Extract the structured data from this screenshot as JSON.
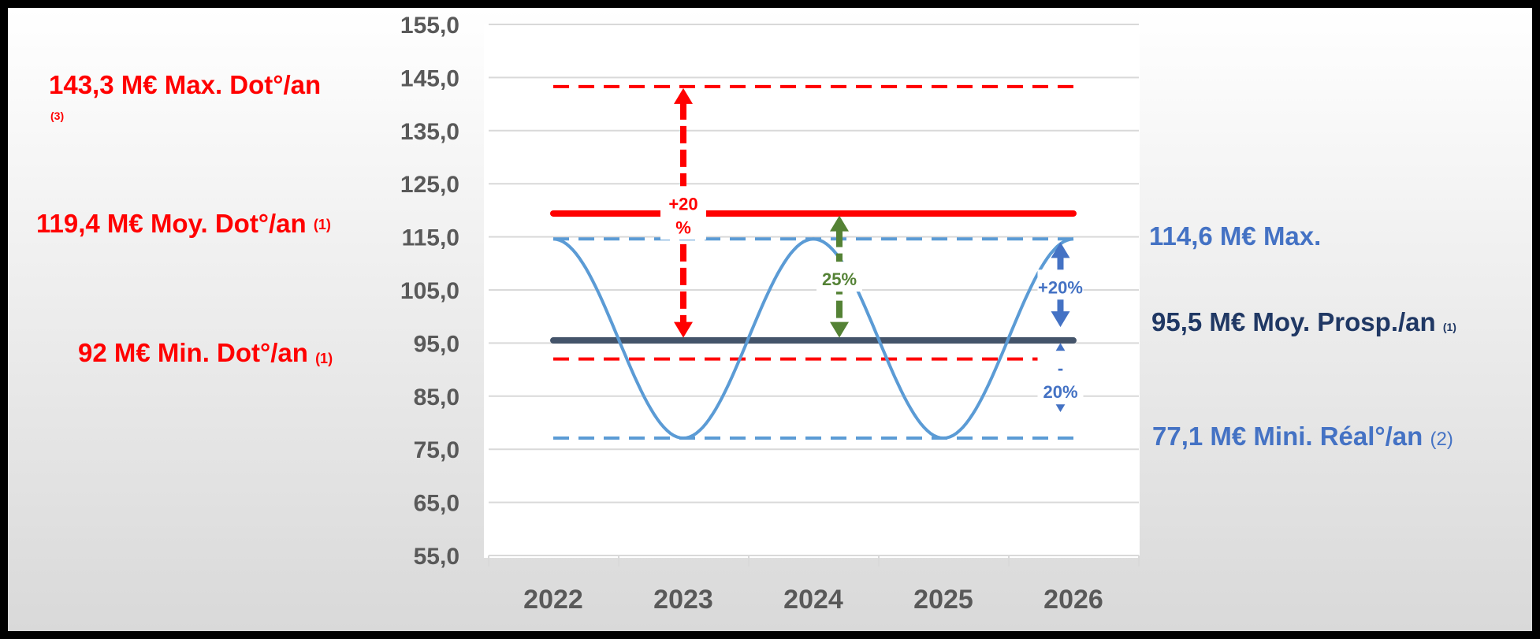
{
  "chart_data": {
    "type": "line",
    "categories": [
      "2022",
      "2023",
      "2024",
      "2025",
      "2026"
    ],
    "y_ticks": [
      "55,0",
      "65,0",
      "75,0",
      "85,0",
      "95,0",
      "105,0",
      "115,0",
      "125,0",
      "135,0",
      "145,0",
      "155,0"
    ],
    "ylim": [
      55,
      155
    ],
    "grid": true,
    "series": [
      {
        "color": "#5b9bd5",
        "style": "smooth",
        "x": [
          2022.0,
          2023.0,
          2024.0,
          2025.0,
          2026.0
        ],
        "values": [
          114.6,
          77.1,
          114.6,
          77.1,
          114.6
        ]
      }
    ],
    "reference_lines": [
      {
        "value": 143.3,
        "color": "#ff0000",
        "style": "dashed",
        "width": 4
      },
      {
        "value": 119.4,
        "color": "#ff0000",
        "style": "solid",
        "width": 8
      },
      {
        "value": 114.6,
        "color": "#5b9bd5",
        "style": "dashed",
        "width": 4
      },
      {
        "value": 95.5,
        "color": "#44546a",
        "style": "solid",
        "width": 8
      },
      {
        "value": 92.0,
        "color": "#ff0000",
        "style": "dashed",
        "width": 4
      },
      {
        "value": 77.1,
        "color": "#5b9bd5",
        "style": "dashed",
        "width": 4
      }
    ],
    "arrows": [
      {
        "x": 2023.0,
        "from": 96,
        "to": 143,
        "color": "#ff0000",
        "dashed": true,
        "label_lines": [
          "+20",
          "%"
        ]
      },
      {
        "x": 2024.2,
        "from": 96,
        "to": 119,
        "color": "#548235",
        "dashed": true,
        "label_lines": [
          "25%"
        ]
      },
      {
        "x": 2025.9,
        "from": 98,
        "to": 114,
        "color": "#4472c4",
        "dashed": false,
        "label_lines": [
          "+20%"
        ]
      },
      {
        "x": 2025.9,
        "from": 82,
        "to": 95,
        "color": "#4472c4",
        "dashed": false,
        "label_lines": [
          "-",
          "20%"
        ]
      }
    ]
  },
  "annotations": {
    "left": [
      {
        "main": "143,3 M€ Max. Dot°/an",
        "note": "(3)",
        "color": "#ff0000"
      },
      {
        "main": "119,4 M€ Moy. Dot°/an ",
        "note": "(1)",
        "color": "#ff0000"
      },
      {
        "main": "92 M€ Min. Dot°/an ",
        "note": "(1)",
        "color": "#ff0000"
      }
    ],
    "right": [
      {
        "main": "114,6 M€ Max.",
        "note": "",
        "color": "#4472c4"
      },
      {
        "main": "95,5 M€ Moy. Prosp./an ",
        "note": "(1)",
        "color": "#203864"
      },
      {
        "main": "77,1 M€ Mini. Réal°/an ",
        "note": "(2)",
        "color": "#4472c4"
      }
    ]
  }
}
